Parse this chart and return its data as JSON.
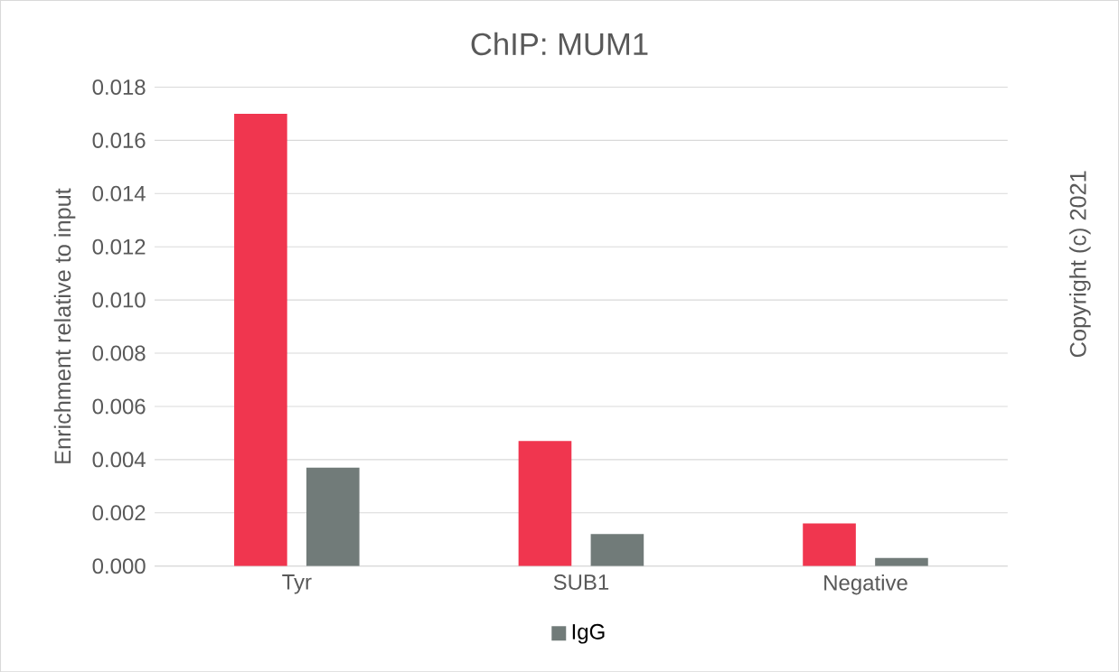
{
  "chart_data": {
    "type": "bar",
    "title": "ChIP: MUM1",
    "ylabel": "Enrichment relative to input",
    "categories": [
      "Tyr",
      "SUB1",
      "Negative"
    ],
    "series": [
      {
        "color": "#f0364f",
        "values": [
          0.017,
          0.0047,
          0.0016
        ]
      },
      {
        "name": "IgG",
        "color": "#717b79",
        "values": [
          0.0037,
          0.0012,
          0.0003
        ]
      }
    ],
    "ylim": [
      0,
      0.018
    ],
    "yticks": [
      {
        "value": 0,
        "label": "0.000"
      },
      {
        "value": 0.002,
        "label": "0.002"
      },
      {
        "value": 0.004,
        "label": "0.004"
      },
      {
        "value": 0.006,
        "label": "0.006"
      },
      {
        "value": 0.008,
        "label": "0.008"
      },
      {
        "value": 0.01,
        "label": "0.010"
      },
      {
        "value": 0.012,
        "label": "0.012"
      },
      {
        "value": 0.014,
        "label": "0.014"
      },
      {
        "value": 0.016,
        "label": "0.016"
      },
      {
        "value": 0.018,
        "label": "0.018"
      }
    ],
    "grid": "y",
    "legend": "bottom",
    "annotations": [
      "Copyright (c) 2021"
    ]
  }
}
